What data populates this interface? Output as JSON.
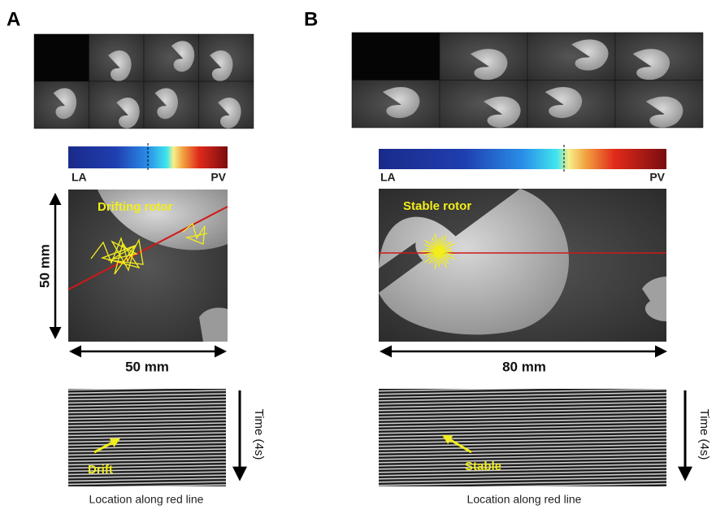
{
  "panels": [
    {
      "label": "A",
      "colorbar": {
        "left": "LA",
        "right": "PV"
      },
      "map_label": "Drifting rotor",
      "height_label": "50 mm",
      "width_label": "50 mm",
      "time_label": "Time (4s)",
      "kymograph_label": "Drift",
      "x_label": "Location along red line"
    },
    {
      "label": "B",
      "colorbar": {
        "left": "LA",
        "right": "PV"
      },
      "map_label": "Stable rotor",
      "width_label": "80 mm",
      "time_label": "Time (4s)",
      "kymograph_label": "Stable",
      "x_label": "Location along red line"
    }
  ]
}
